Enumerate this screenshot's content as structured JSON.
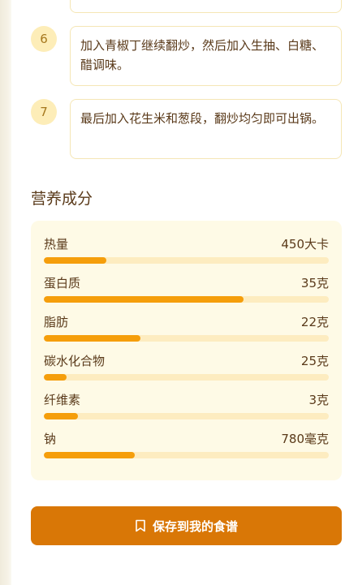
{
  "steps": [
    {
      "number": "6",
      "text": "加入青椒丁继续翻炒，然后加入生抽、白糖、醋调味。"
    },
    {
      "number": "7",
      "text": "最后加入花生米和葱段，翻炒均匀即可出锅。"
    }
  ],
  "nutrition": {
    "title": "营养成分",
    "items": [
      {
        "label": "热量",
        "value": "450大卡",
        "fraction": 0.22
      },
      {
        "label": "蛋白质",
        "value": "35克",
        "fraction": 0.7
      },
      {
        "label": "脂肪",
        "value": "22克",
        "fraction": 0.34
      },
      {
        "label": "碳水化合物",
        "value": "25克",
        "fraction": 0.08
      },
      {
        "label": "纤维素",
        "value": "3克",
        "fraction": 0.12
      },
      {
        "label": "钠",
        "value": "780毫克",
        "fraction": 0.32
      }
    ]
  },
  "save_button": {
    "label": "保存到我的食谱",
    "icon": "bookmark-icon"
  },
  "colors": {
    "accent": "#d97706",
    "bar": "#f59e0b",
    "track": "#fdecc0",
    "card": "#fefae6"
  }
}
